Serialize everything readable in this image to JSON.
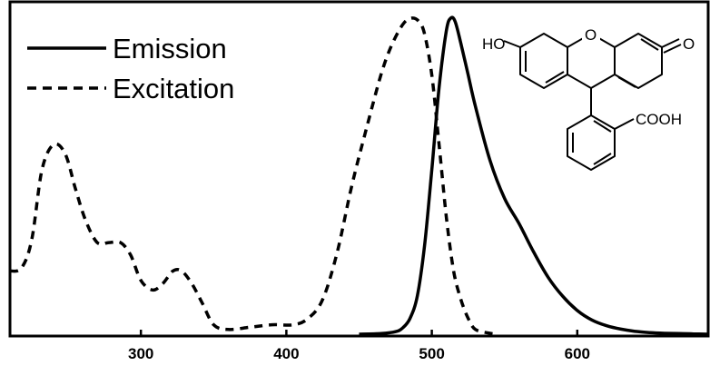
{
  "chart_data": {
    "type": "line",
    "title": "",
    "xlabel": "",
    "ylabel": "",
    "xlim": [
      210,
      690
    ],
    "ylim": [
      0,
      1.0
    ],
    "xticks": [
      300,
      400,
      500,
      600
    ],
    "grid": false,
    "legend_position": "top-left",
    "series": [
      {
        "name": "Emission",
        "style": "solid",
        "color": "#000000",
        "x": [
          450,
          465,
          475,
          480,
          485,
          490,
          495,
          500,
          505,
          510,
          513,
          516,
          520,
          525,
          530,
          540,
          550,
          560,
          570,
          580,
          590,
          600,
          610,
          620,
          630,
          640,
          650,
          660,
          670,
          680,
          690
        ],
        "y": [
          0.0,
          0.002,
          0.008,
          0.02,
          0.05,
          0.12,
          0.28,
          0.52,
          0.78,
          0.96,
          1.0,
          0.99,
          0.92,
          0.82,
          0.72,
          0.55,
          0.43,
          0.35,
          0.26,
          0.18,
          0.12,
          0.075,
          0.045,
          0.027,
          0.016,
          0.009,
          0.005,
          0.003,
          0.002,
          0.001,
          0.0
        ]
      },
      {
        "name": "Excitation",
        "style": "dashed",
        "color": "#000000",
        "x": [
          210,
          218,
          225,
          232,
          240,
          248,
          255,
          262,
          270,
          278,
          286,
          293,
          300,
          308,
          315,
          322,
          328,
          335,
          342,
          350,
          360,
          375,
          390,
          405,
          415,
          425,
          435,
          445,
          455,
          465,
          472,
          480,
          486,
          491,
          495,
          500,
          505,
          510,
          515,
          520,
          525,
          530,
          540,
          545
        ],
        "y": [
          0.2,
          0.21,
          0.3,
          0.52,
          0.6,
          0.57,
          0.46,
          0.36,
          0.29,
          0.29,
          0.29,
          0.25,
          0.17,
          0.14,
          0.16,
          0.2,
          0.2,
          0.16,
          0.1,
          0.03,
          0.015,
          0.022,
          0.03,
          0.03,
          0.05,
          0.11,
          0.26,
          0.47,
          0.65,
          0.82,
          0.91,
          0.98,
          1.0,
          0.99,
          0.95,
          0.82,
          0.6,
          0.37,
          0.2,
          0.11,
          0.05,
          0.015,
          0.003,
          0.0
        ]
      }
    ]
  },
  "legend": {
    "items": [
      {
        "label": "Emission",
        "style": "solid"
      },
      {
        "label": "Excitation",
        "style": "dashed"
      }
    ]
  },
  "molecule": {
    "name": "fluorescein",
    "labels": {
      "hydroxyl": "HO",
      "ring_oxygen": "O",
      "carbonyl_oxygen": "O",
      "carboxyl": "COOH"
    }
  },
  "colors": {
    "line": "#000000",
    "background": "#ffffff"
  }
}
